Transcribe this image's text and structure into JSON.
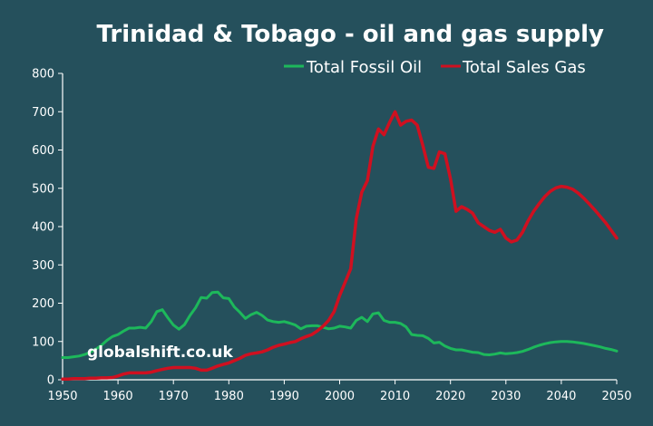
{
  "chart_data": {
    "type": "line",
    "title": "Trinidad & Tobago - oil and gas supply",
    "xlabel": "",
    "ylabel": "",
    "xlim": [
      1950,
      2050
    ],
    "ylim": [
      0,
      800
    ],
    "grid": false,
    "legend_position": "top-right",
    "x_ticks": [
      1950,
      1960,
      1970,
      1980,
      1990,
      2000,
      2010,
      2020,
      2030,
      2040,
      2050
    ],
    "y_ticks": [
      0,
      100,
      200,
      300,
      400,
      500,
      600,
      700,
      800
    ],
    "annotation": "globalshift.co.uk",
    "series": [
      {
        "name": "Total Fossil Oil",
        "color": "#1db85b",
        "points": [
          [
            1950,
            58
          ],
          [
            1951,
            58
          ],
          [
            1952,
            60
          ],
          [
            1953,
            62
          ],
          [
            1954,
            66
          ],
          [
            1955,
            72
          ],
          [
            1956,
            80
          ],
          [
            1957,
            90
          ],
          [
            1958,
            103
          ],
          [
            1959,
            113
          ],
          [
            1960,
            118
          ],
          [
            1961,
            127
          ],
          [
            1962,
            135
          ],
          [
            1963,
            135
          ],
          [
            1964,
            137
          ],
          [
            1965,
            135
          ],
          [
            1966,
            152
          ],
          [
            1967,
            178
          ],
          [
            1968,
            183
          ],
          [
            1969,
            162
          ],
          [
            1970,
            143
          ],
          [
            1971,
            132
          ],
          [
            1972,
            144
          ],
          [
            1973,
            168
          ],
          [
            1974,
            188
          ],
          [
            1975,
            215
          ],
          [
            1976,
            213
          ],
          [
            1977,
            228
          ],
          [
            1978,
            229
          ],
          [
            1979,
            214
          ],
          [
            1980,
            212
          ],
          [
            1981,
            190
          ],
          [
            1982,
            176
          ],
          [
            1983,
            160
          ],
          [
            1984,
            170
          ],
          [
            1985,
            176
          ],
          [
            1986,
            168
          ],
          [
            1987,
            156
          ],
          [
            1988,
            152
          ],
          [
            1989,
            150
          ],
          [
            1990,
            152
          ],
          [
            1991,
            148
          ],
          [
            1992,
            143
          ],
          [
            1993,
            133
          ],
          [
            1994,
            140
          ],
          [
            1995,
            141
          ],
          [
            1996,
            141
          ],
          [
            1997,
            137
          ],
          [
            1998,
            133
          ],
          [
            1999,
            135
          ],
          [
            2000,
            140
          ],
          [
            2001,
            138
          ],
          [
            2002,
            135
          ],
          [
            2003,
            155
          ],
          [
            2004,
            163
          ],
          [
            2005,
            152
          ],
          [
            2006,
            172
          ],
          [
            2007,
            175
          ],
          [
            2008,
            155
          ],
          [
            2009,
            150
          ],
          [
            2010,
            150
          ],
          [
            2011,
            147
          ],
          [
            2012,
            138
          ],
          [
            2013,
            118
          ],
          [
            2014,
            116
          ],
          [
            2015,
            115
          ],
          [
            2016,
            108
          ],
          [
            2017,
            96
          ],
          [
            2018,
            98
          ],
          [
            2019,
            88
          ],
          [
            2020,
            82
          ],
          [
            2021,
            78
          ],
          [
            2022,
            78
          ],
          [
            2023,
            75
          ],
          [
            2024,
            72
          ],
          [
            2025,
            71
          ],
          [
            2026,
            66
          ],
          [
            2027,
            65
          ],
          [
            2028,
            67
          ],
          [
            2029,
            70
          ],
          [
            2030,
            68
          ],
          [
            2031,
            69
          ],
          [
            2032,
            71
          ],
          [
            2033,
            74
          ],
          [
            2034,
            79
          ],
          [
            2035,
            85
          ],
          [
            2036,
            90
          ],
          [
            2037,
            94
          ],
          [
            2038,
            97
          ],
          [
            2039,
            99
          ],
          [
            2040,
            100
          ],
          [
            2041,
            100
          ],
          [
            2042,
            99
          ],
          [
            2043,
            97
          ],
          [
            2044,
            95
          ],
          [
            2045,
            92
          ],
          [
            2046,
            89
          ],
          [
            2047,
            86
          ],
          [
            2048,
            82
          ],
          [
            2049,
            79
          ],
          [
            2050,
            75
          ]
        ]
      },
      {
        "name": "Total Sales Gas",
        "color": "#cf1020",
        "points": [
          [
            1950,
            2
          ],
          [
            1951,
            2
          ],
          [
            1952,
            3
          ],
          [
            1953,
            3
          ],
          [
            1954,
            3
          ],
          [
            1955,
            4
          ],
          [
            1956,
            4
          ],
          [
            1957,
            5
          ],
          [
            1958,
            5
          ],
          [
            1959,
            6
          ],
          [
            1960,
            10
          ],
          [
            1961,
            15
          ],
          [
            1962,
            18
          ],
          [
            1963,
            18
          ],
          [
            1964,
            18
          ],
          [
            1965,
            18
          ],
          [
            1966,
            20
          ],
          [
            1967,
            24
          ],
          [
            1968,
            27
          ],
          [
            1969,
            30
          ],
          [
            1970,
            32
          ],
          [
            1971,
            32
          ],
          [
            1972,
            32
          ],
          [
            1973,
            32
          ],
          [
            1974,
            30
          ],
          [
            1975,
            25
          ],
          [
            1976,
            25
          ],
          [
            1977,
            30
          ],
          [
            1978,
            36
          ],
          [
            1979,
            40
          ],
          [
            1980,
            44
          ],
          [
            1981,
            50
          ],
          [
            1982,
            56
          ],
          [
            1983,
            64
          ],
          [
            1984,
            68
          ],
          [
            1985,
            70
          ],
          [
            1986,
            73
          ],
          [
            1987,
            78
          ],
          [
            1988,
            85
          ],
          [
            1989,
            90
          ],
          [
            1990,
            93
          ],
          [
            1991,
            97
          ],
          [
            1992,
            100
          ],
          [
            1993,
            107
          ],
          [
            1994,
            113
          ],
          [
            1995,
            118
          ],
          [
            1996,
            128
          ],
          [
            1997,
            140
          ],
          [
            1998,
            155
          ],
          [
            1999,
            178
          ],
          [
            2000,
            220
          ],
          [
            2001,
            255
          ],
          [
            2002,
            290
          ],
          [
            2003,
            420
          ],
          [
            2004,
            490
          ],
          [
            2005,
            520
          ],
          [
            2006,
            610
          ],
          [
            2007,
            655
          ],
          [
            2008,
            640
          ],
          [
            2009,
            672
          ],
          [
            2010,
            700
          ],
          [
            2011,
            665
          ],
          [
            2012,
            675
          ],
          [
            2013,
            678
          ],
          [
            2014,
            665
          ],
          [
            2015,
            612
          ],
          [
            2016,
            555
          ],
          [
            2017,
            552
          ],
          [
            2018,
            595
          ],
          [
            2019,
            590
          ],
          [
            2020,
            525
          ],
          [
            2021,
            440
          ],
          [
            2022,
            452
          ],
          [
            2023,
            445
          ],
          [
            2024,
            435
          ],
          [
            2025,
            410
          ],
          [
            2026,
            400
          ],
          [
            2027,
            390
          ],
          [
            2028,
            385
          ],
          [
            2029,
            393
          ],
          [
            2030,
            370
          ],
          [
            2031,
            360
          ],
          [
            2032,
            365
          ],
          [
            2033,
            385
          ],
          [
            2034,
            415
          ],
          [
            2035,
            440
          ],
          [
            2036,
            460
          ],
          [
            2037,
            478
          ],
          [
            2038,
            492
          ],
          [
            2039,
            501
          ],
          [
            2040,
            505
          ],
          [
            2041,
            503
          ],
          [
            2042,
            498
          ],
          [
            2043,
            488
          ],
          [
            2044,
            475
          ],
          [
            2045,
            460
          ],
          [
            2046,
            444
          ],
          [
            2047,
            427
          ],
          [
            2048,
            410
          ],
          [
            2049,
            390
          ],
          [
            2050,
            370
          ]
        ]
      }
    ]
  }
}
